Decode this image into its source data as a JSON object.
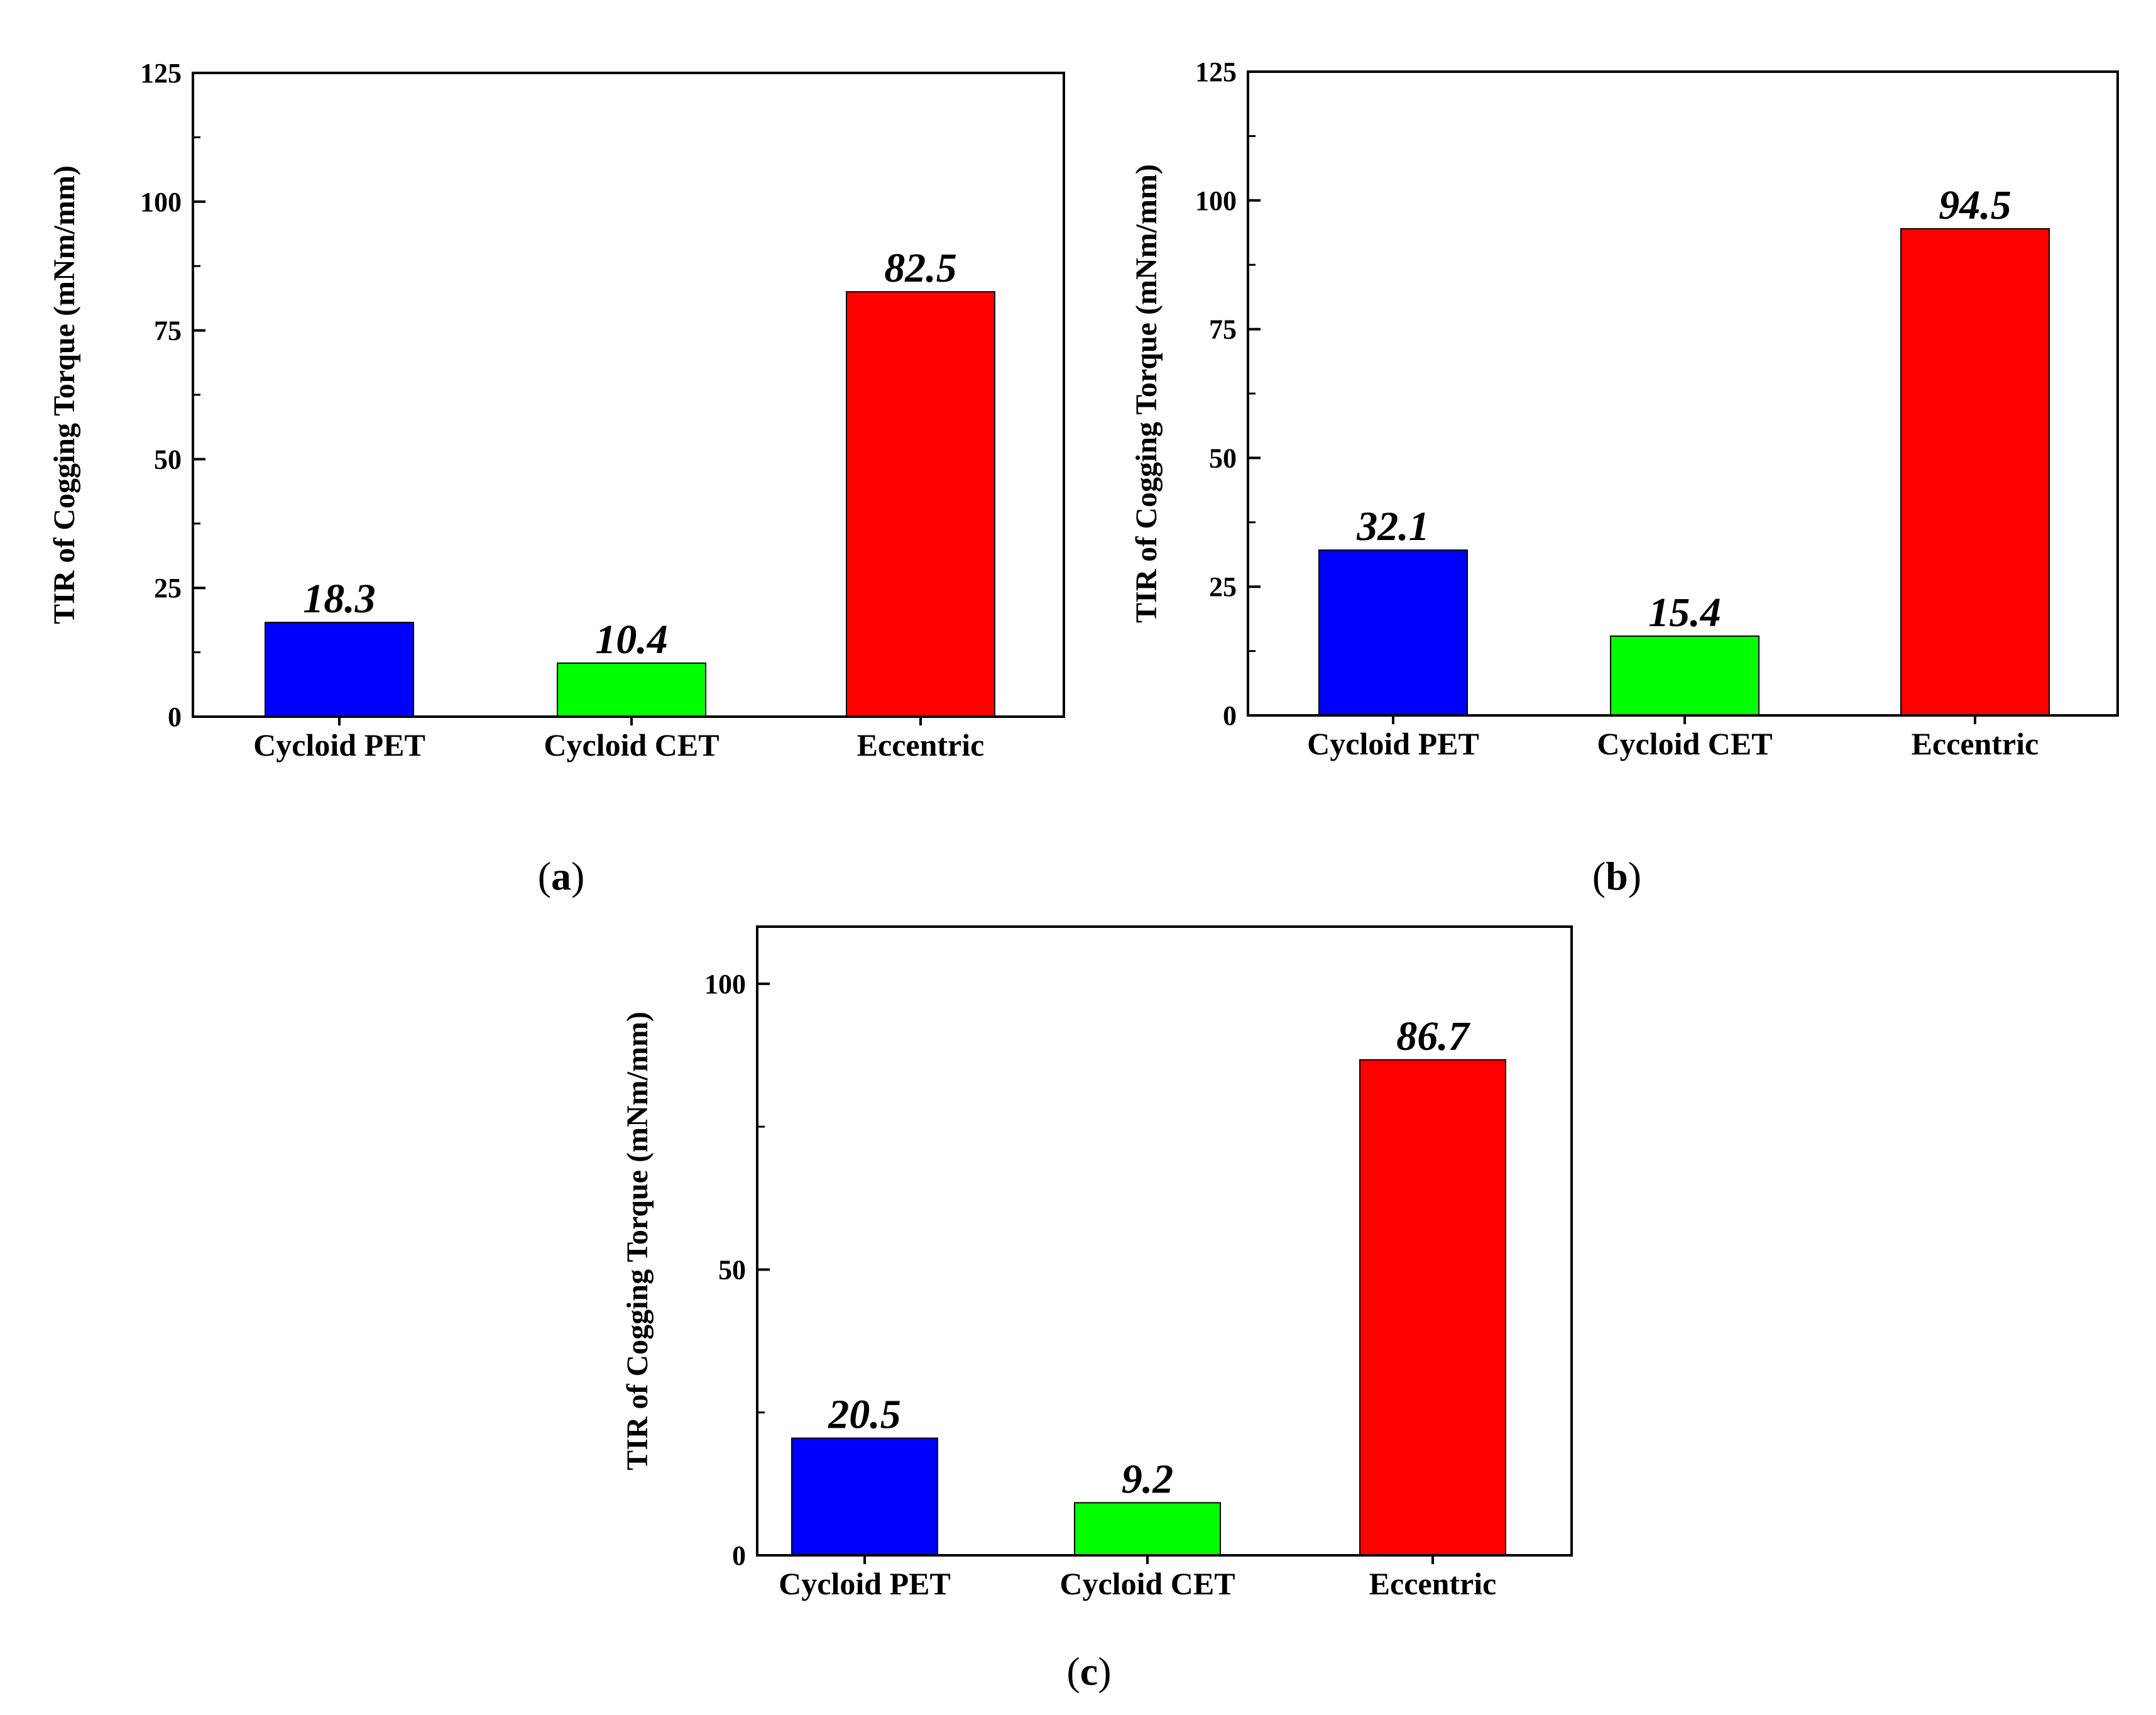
{
  "chart_data": [
    {
      "panel": "(a)",
      "panel_letter": "a",
      "type": "bar",
      "categories": [
        "Cycloid PET",
        "Cycloid CET",
        "Eccentric"
      ],
      "values": [
        18.3,
        10.4,
        82.5
      ],
      "value_labels": [
        "18.3",
        "10.4",
        "82.5"
      ],
      "colors": [
        "#0000ff",
        "#00ff00",
        "#ff0000"
      ],
      "ylabel": "TIR of Cogging Torque (mNm/mm)",
      "xlabel": "",
      "ylim": [
        0,
        125
      ],
      "yticks": [
        0,
        25,
        50,
        75,
        100,
        125
      ]
    },
    {
      "panel": "(b)",
      "panel_letter": "b",
      "type": "bar",
      "categories": [
        "Cycloid PET",
        "Cycloid CET",
        "Eccentric"
      ],
      "values": [
        32.1,
        15.4,
        94.5
      ],
      "value_labels": [
        "32.1",
        "15.4",
        "94.5"
      ],
      "colors": [
        "#0000ff",
        "#00ff00",
        "#ff0000"
      ],
      "ylabel": "TIR of Cogging Torque (mNm/mm)",
      "xlabel": "",
      "ylim": [
        0,
        125
      ],
      "yticks": [
        0,
        25,
        50,
        75,
        100,
        125
      ]
    },
    {
      "panel": "(c)",
      "panel_letter": "c",
      "type": "bar",
      "categories": [
        "Cycloid PET",
        "Cycloid CET",
        "Eccentric"
      ],
      "values": [
        20.5,
        9.2,
        86.7
      ],
      "value_labels": [
        "20.5",
        "9.2",
        "86.7"
      ],
      "colors": [
        "#0000ff",
        "#00ff00",
        "#ff0000"
      ],
      "ylabel": "TIR of Cogging Torque (mNm/mm)",
      "xlabel": "",
      "ylim": [
        0,
        110
      ],
      "yticks": [
        0,
        50,
        100
      ]
    }
  ]
}
